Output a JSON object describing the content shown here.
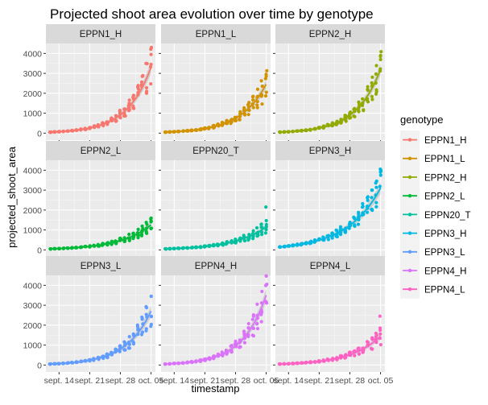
{
  "chart_data": {
    "type": "scatter",
    "title": "Projected shoot area evolution over time by genotype",
    "xlabel": "timestamp",
    "ylabel": "projected_shoot_area",
    "x_tick_labels": [
      "sept. 14",
      "sept. 21",
      "sept. 28",
      "oct. 05"
    ],
    "y_ticks": [
      0,
      1000,
      2000,
      3000,
      4000
    ],
    "ylim": [
      -350,
      4500
    ],
    "xlim": [
      -1,
      24
    ],
    "legend_title": "genotype",
    "legend_position": "right",
    "grid": true,
    "facets": [
      {
        "name": "EPPN1_H",
        "color": "#F8766D",
        "start": 50,
        "end": 3300,
        "max": 4300
      },
      {
        "name": "EPPN1_L",
        "color": "#D39200",
        "start": 50,
        "end": 2450,
        "max": 2950
      },
      {
        "name": "EPPN2_H",
        "color": "#93AA00",
        "start": 50,
        "end": 3200,
        "max": 3900
      },
      {
        "name": "EPPN2_L",
        "color": "#00BA38",
        "start": 50,
        "end": 1250,
        "max": 1550
      },
      {
        "name": "EPPN20_T",
        "color": "#00C19F",
        "start": 50,
        "end": 1150,
        "max": 2150
      },
      {
        "name": "EPPN3_H",
        "color": "#00B9E3",
        "start": 150,
        "end": 3100,
        "max": 3900
      },
      {
        "name": "EPPN3_L",
        "color": "#619CFF",
        "start": 50,
        "end": 2700,
        "max": 3450
      },
      {
        "name": "EPPN4_H",
        "color": "#DB72FB",
        "start": 50,
        "end": 3500,
        "max": 4050
      },
      {
        "name": "EPPN4_L",
        "color": "#FF61C3",
        "start": 50,
        "end": 1450,
        "max": 2450
      }
    ]
  }
}
